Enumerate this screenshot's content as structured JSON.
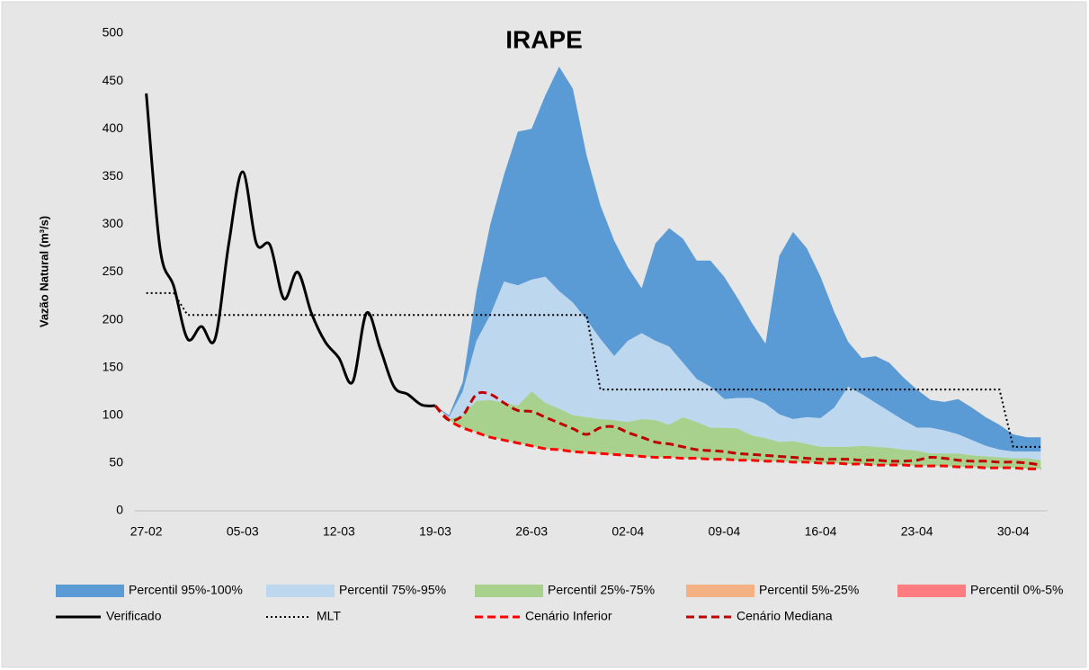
{
  "chart_data": {
    "type": "line",
    "title": "IRAPE",
    "y_label": "Vazão Natural (m³/s)",
    "categories": [
      "27-02",
      null,
      null,
      null,
      null,
      null,
      null,
      "05-03",
      null,
      null,
      null,
      null,
      null,
      null,
      "12-03",
      null,
      null,
      null,
      null,
      null,
      null,
      "19-03",
      null,
      null,
      null,
      null,
      null,
      null,
      "26-03",
      null,
      null,
      null,
      null,
      null,
      null,
      "02-04",
      null,
      null,
      null,
      null,
      null,
      null,
      "09-04",
      null,
      null,
      null,
      null,
      null,
      null,
      "16-04",
      null,
      null,
      null,
      null,
      null,
      null,
      "23-04",
      null,
      null,
      null,
      null,
      null,
      null,
      "30-04",
      null,
      null
    ],
    "ylim": [
      0,
      500
    ],
    "yticks": [
      0,
      50,
      100,
      150,
      200,
      250,
      300,
      350,
      400,
      450,
      500
    ],
    "grid": false,
    "legend": "bottom",
    "series": [
      {
        "name": "Percentil 95%-100%",
        "kind": "band",
        "color": "#5b9bd5",
        "low": [
          null,
          null,
          null,
          null,
          null,
          null,
          null,
          null,
          null,
          null,
          null,
          null,
          null,
          null,
          null,
          null,
          null,
          null,
          null,
          null,
          null,
          110,
          98,
          125,
          178,
          205,
          240,
          236,
          242,
          245,
          230,
          218,
          200,
          180,
          162,
          178,
          186,
          178,
          172,
          155,
          138,
          130,
          117,
          118,
          118,
          112,
          101,
          96,
          98,
          97,
          108,
          130,
          122,
          113,
          104,
          95,
          87,
          87,
          84,
          80,
          74,
          68,
          64,
          62,
          62,
          62
        ],
        "values": [
          null,
          null,
          null,
          null,
          null,
          null,
          null,
          null,
          null,
          null,
          null,
          null,
          null,
          null,
          null,
          null,
          null,
          null,
          null,
          null,
          null,
          110,
          100,
          135,
          230,
          300,
          352,
          397,
          400,
          435,
          465,
          442,
          372,
          320,
          283,
          255,
          233,
          280,
          296,
          285,
          262,
          262,
          245,
          222,
          197,
          175,
          267,
          292,
          275,
          245,
          208,
          177,
          160,
          162,
          155,
          140,
          127,
          116,
          114,
          117,
          108,
          98,
          90,
          80,
          77,
          77
        ]
      },
      {
        "name": "Percentil 75%-95%",
        "kind": "band",
        "color": "#bdd7ee",
        "low": [
          null,
          null,
          null,
          null,
          null,
          null,
          null,
          null,
          null,
          null,
          null,
          null,
          null,
          null,
          null,
          null,
          null,
          null,
          null,
          null,
          null,
          110,
          96,
          100,
          115,
          116,
          113,
          110,
          125,
          113,
          107,
          100,
          98,
          96,
          95,
          93,
          96,
          95,
          90,
          98,
          93,
          87,
          87,
          86,
          79,
          76,
          72,
          73,
          70,
          67,
          67,
          67,
          68,
          67,
          66,
          64,
          63,
          60,
          60,
          60,
          58,
          57,
          56,
          55,
          55,
          53
        ],
        "values": [
          null,
          null,
          null,
          null,
          null,
          null,
          null,
          null,
          null,
          null,
          null,
          null,
          null,
          null,
          null,
          null,
          null,
          null,
          null,
          null,
          null,
          110,
          98,
          125,
          178,
          205,
          240,
          236,
          242,
          245,
          230,
          218,
          200,
          180,
          162,
          178,
          186,
          178,
          172,
          155,
          138,
          130,
          117,
          118,
          118,
          112,
          101,
          96,
          98,
          97,
          108,
          130,
          122,
          113,
          104,
          95,
          87,
          87,
          84,
          80,
          74,
          68,
          64,
          62,
          62,
          62
        ]
      },
      {
        "name": "Percentil 25%-75%",
        "kind": "band",
        "color": "#a9d18e",
        "low": [
          null,
          null,
          null,
          null,
          null,
          null,
          null,
          null,
          null,
          null,
          null,
          null,
          null,
          null,
          null,
          null,
          null,
          null,
          null,
          null,
          null,
          110,
          95,
          87,
          82,
          77,
          74,
          71,
          68,
          65,
          64,
          62,
          61,
          60,
          59,
          58,
          57,
          56,
          56,
          55,
          55,
          54,
          54,
          53,
          53,
          52,
          52,
          51,
          51,
          50,
          50,
          49,
          49,
          48,
          48,
          48,
          47,
          47,
          47,
          46,
          46,
          45,
          45,
          45,
          44,
          44
        ],
        "values": [
          null,
          null,
          null,
          null,
          null,
          null,
          null,
          null,
          null,
          null,
          null,
          null,
          null,
          null,
          null,
          null,
          null,
          null,
          null,
          null,
          null,
          110,
          96,
          100,
          115,
          116,
          113,
          110,
          125,
          113,
          107,
          100,
          98,
          96,
          95,
          93,
          96,
          95,
          90,
          98,
          93,
          87,
          87,
          86,
          79,
          76,
          72,
          73,
          70,
          67,
          67,
          67,
          68,
          67,
          66,
          64,
          63,
          60,
          60,
          60,
          58,
          57,
          56,
          55,
          55,
          53
        ]
      },
      {
        "name": "Percentil 5%-25%",
        "kind": "band",
        "color": "#f4b183",
        "low": [
          null,
          null,
          null,
          null,
          null,
          null,
          null,
          null,
          null,
          null,
          null,
          null,
          null,
          null,
          null,
          null,
          null,
          null,
          null,
          null,
          null,
          110,
          95,
          87,
          82,
          77,
          74,
          71,
          68,
          65,
          64,
          62,
          61,
          60,
          59,
          58,
          57,
          56,
          56,
          55,
          55,
          54,
          54,
          53,
          53,
          52,
          52,
          51,
          51,
          50,
          50,
          49,
          49,
          48,
          48,
          48,
          47,
          47,
          47,
          46,
          46,
          45,
          45,
          45,
          44,
          44
        ],
        "values": [
          null,
          null,
          null,
          null,
          null,
          null,
          null,
          null,
          null,
          null,
          null,
          null,
          null,
          null,
          null,
          null,
          null,
          null,
          null,
          null,
          null,
          110,
          95,
          87,
          82,
          77,
          74,
          71,
          68,
          65,
          64,
          62,
          61,
          60,
          59,
          58,
          57,
          56,
          56,
          55,
          55,
          54,
          54,
          53,
          53,
          52,
          52,
          51,
          51,
          50,
          50,
          49,
          49,
          48,
          48,
          48,
          47,
          47,
          47,
          46,
          46,
          45,
          45,
          45,
          44,
          44
        ]
      },
      {
        "name": "Percentil 0%-5%",
        "kind": "band",
        "color": "#ff7c80",
        "low": [
          null,
          null,
          null,
          null,
          null,
          null,
          null,
          null,
          null,
          null,
          null,
          null,
          null,
          null,
          null,
          null,
          null,
          null,
          null,
          null,
          null,
          110,
          95,
          87,
          82,
          77,
          74,
          71,
          68,
          65,
          64,
          62,
          61,
          60,
          59,
          58,
          57,
          56,
          56,
          55,
          55,
          54,
          54,
          53,
          53,
          52,
          52,
          51,
          51,
          50,
          50,
          49,
          49,
          48,
          48,
          48,
          47,
          47,
          47,
          46,
          46,
          45,
          45,
          45,
          44,
          44
        ],
        "values": [
          null,
          null,
          null,
          null,
          null,
          null,
          null,
          null,
          null,
          null,
          null,
          null,
          null,
          null,
          null,
          null,
          null,
          null,
          null,
          null,
          null,
          110,
          95,
          87,
          82,
          77,
          74,
          71,
          68,
          65,
          64,
          62,
          61,
          60,
          59,
          58,
          57,
          56,
          56,
          55,
          55,
          54,
          54,
          53,
          53,
          52,
          52,
          51,
          51,
          50,
          50,
          49,
          49,
          48,
          48,
          48,
          47,
          47,
          47,
          46,
          46,
          45,
          45,
          45,
          44,
          44
        ]
      },
      {
        "name": "Verificado",
        "kind": "line",
        "color": "#000000",
        "style": "solid",
        "smooth": true,
        "values": [
          437,
          275,
          235,
          180,
          193,
          180,
          280,
          355,
          280,
          278,
          222,
          250,
          207,
          177,
          160,
          135,
          207,
          170,
          130,
          122,
          111,
          110,
          null,
          null,
          null,
          null,
          null,
          null,
          null,
          null,
          null,
          null,
          null,
          null,
          null,
          null,
          null,
          null,
          null,
          null,
          null,
          null,
          null,
          null,
          null,
          null,
          null,
          null,
          null,
          null,
          null,
          null,
          null,
          null,
          null,
          null,
          null,
          null,
          null,
          null,
          null,
          null,
          null,
          null,
          null,
          null
        ]
      },
      {
        "name": "MLT",
        "kind": "line",
        "color": "#000000",
        "style": "dotted",
        "smooth": false,
        "values": [
          228,
          228,
          228,
          205,
          205,
          205,
          205,
          205,
          205,
          205,
          205,
          205,
          205,
          205,
          205,
          205,
          205,
          205,
          205,
          205,
          205,
          205,
          205,
          205,
          205,
          205,
          205,
          205,
          205,
          205,
          205,
          205,
          205,
          127,
          127,
          127,
          127,
          127,
          127,
          127,
          127,
          127,
          127,
          127,
          127,
          127,
          127,
          127,
          127,
          127,
          127,
          127,
          127,
          127,
          127,
          127,
          127,
          127,
          127,
          127,
          127,
          127,
          127,
          67,
          67,
          67
        ]
      },
      {
        "name": "Cenário Inferior",
        "kind": "line",
        "color": "#ff0000",
        "style": "dashed",
        "smooth": true,
        "values": [
          null,
          null,
          null,
          null,
          null,
          null,
          null,
          null,
          null,
          null,
          null,
          null,
          null,
          null,
          null,
          null,
          null,
          null,
          null,
          null,
          null,
          110,
          95,
          87,
          82,
          77,
          74,
          71,
          68,
          65,
          64,
          62,
          61,
          60,
          59,
          58,
          57,
          56,
          56,
          55,
          55,
          54,
          54,
          53,
          53,
          52,
          52,
          51,
          51,
          50,
          50,
          49,
          49,
          48,
          48,
          48,
          47,
          47,
          47,
          46,
          46,
          45,
          45,
          45,
          44,
          44
        ]
      },
      {
        "name": "Cenário Mediana",
        "kind": "line",
        "color": "#c00000",
        "style": "dashed",
        "smooth": true,
        "values": [
          null,
          null,
          null,
          null,
          null,
          null,
          null,
          null,
          null,
          null,
          null,
          null,
          null,
          null,
          null,
          null,
          null,
          null,
          null,
          null,
          null,
          110,
          95,
          100,
          122,
          122,
          113,
          105,
          104,
          98,
          92,
          86,
          80,
          87,
          88,
          82,
          77,
          72,
          70,
          67,
          64,
          63,
          62,
          60,
          59,
          58,
          57,
          56,
          55,
          54,
          54,
          54,
          53,
          53,
          52,
          52,
          53,
          56,
          55,
          53,
          52,
          52,
          51,
          51,
          50,
          48
        ]
      }
    ]
  }
}
